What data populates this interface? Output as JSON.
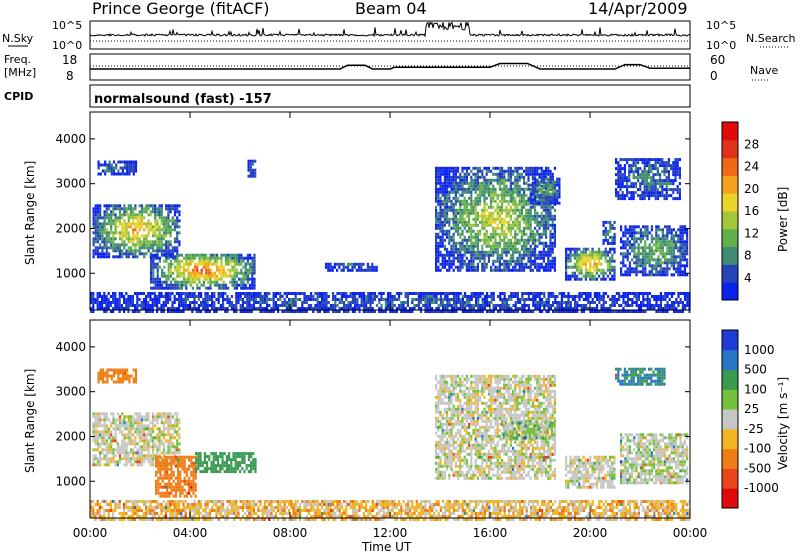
{
  "header": {
    "station": "Prince George (fitACF)",
    "beam": "Beam 04",
    "date": "14/Apr/2009"
  },
  "top_panels": {
    "nsky_label": "N.Sky",
    "nsearch_label": "N.Search",
    "noise_ticks_left": [
      "10^5",
      "10^0"
    ],
    "noise_ticks_right": [
      "10^5",
      "10^0"
    ],
    "freq_label_1": "Freq.",
    "freq_label_2": "[MHz]",
    "freq_ticks": [
      "18",
      "8"
    ],
    "nave_label": "Nave",
    "nave_ticks": [
      "60",
      "0"
    ],
    "cpid_label": "CPID",
    "cpid_text": "normalsound (fast) -157"
  },
  "axes": {
    "ylabel": "Slant Range [km]",
    "xlabel": "Time UT",
    "xticks": [
      "00:00",
      "04:00",
      "08:00",
      "12:00",
      "16:00",
      "20:00",
      "00:00"
    ],
    "yticks": [
      "1000",
      "2000",
      "3000",
      "4000"
    ]
  },
  "colorbars": {
    "power": {
      "label": "Power [dB]",
      "ticks": [
        "4",
        "8",
        "12",
        "16",
        "20",
        "24",
        "28"
      ],
      "colors": [
        "#0a22ee",
        "#2745b8",
        "#3d8a75",
        "#62b04c",
        "#a3c63d",
        "#ead42a",
        "#f4a21e",
        "#ef6a16",
        "#e3311b",
        "#e00a0a"
      ]
    },
    "velocity": {
      "label": "Velocity [m s⁻¹]",
      "ticks": [
        "1000",
        "500",
        "100",
        "25",
        "-25",
        "-100",
        "-500",
        "-1000"
      ],
      "colors": [
        "#1f3bd6",
        "#2a76c6",
        "#3a9a52",
        "#74c23c",
        "#c6c6c6",
        "#f0b520",
        "#ef7d16",
        "#e8461a",
        "#e00a0a"
      ]
    }
  },
  "chart_data": [
    {
      "type": "line",
      "panel": "noise",
      "x_range_hours": [
        0,
        24
      ],
      "series": [
        {
          "name": "N.Sky"
        },
        {
          "name": "N.Search"
        }
      ],
      "note_levels": "sky noise near baseline with spikes 13:30-15:00"
    },
    {
      "type": "line",
      "panel": "frequency_nave",
      "series": [
        {
          "name": "Freq.",
          "x": [
            0,
            1.3,
            1.5,
            5.8,
            6.0,
            10.0,
            10.2,
            12.5,
            13.5,
            14.0,
            18.0,
            20.5,
            21.0,
            22.0,
            22.5,
            24
          ],
          "y": [
            10.5,
            9.8,
            10.5,
            10.5,
            9.8,
            9.8,
            10.5,
            10.5,
            10.5,
            10.5,
            10.5,
            10.5,
            10.5,
            10.5,
            10.5,
            10.5
          ]
        },
        {
          "name": "Nave",
          "x": [
            0,
            10.0,
            10.3,
            11.0,
            11.3,
            12.0,
            12.2,
            16.0,
            16.4,
            17.5,
            18.0,
            21.0,
            21.4,
            22.0,
            22.4,
            24
          ],
          "y": [
            30,
            30,
            40,
            40,
            30,
            30,
            35,
            35,
            45,
            45,
            30,
            30,
            42,
            42,
            32,
            32
          ]
        }
      ]
    },
    {
      "type": "heatmap",
      "panel": "power",
      "x_unit": "hours UT",
      "y_unit": "km",
      "x_range": [
        0,
        24
      ],
      "y_range": [
        180,
        4600
      ],
      "color_ticks_dB": [
        4,
        8,
        12,
        16,
        20,
        24,
        28
      ],
      "echo_regions": [
        {
          "x": [
            0.1,
            3.6
          ],
          "y": [
            1400,
            2600
          ],
          "peak_dB": 22
        },
        {
          "x": [
            0.3,
            1.8
          ],
          "y": [
            3250,
            3550
          ],
          "peak_dB": 10
        },
        {
          "x": [
            2.4,
            6.6
          ],
          "y": [
            700,
            1500
          ],
          "peak_dB": 26
        },
        {
          "x": [
            6.3,
            6.6
          ],
          "y": [
            3200,
            3600
          ],
          "peak_dB": 8
        },
        {
          "x": [
            9.4,
            11.5
          ],
          "y": [
            1100,
            1300
          ],
          "peak_dB": 8
        },
        {
          "x": [
            13.8,
            18.6
          ],
          "y": [
            1100,
            3400
          ],
          "peak_dB": 18
        },
        {
          "x": [
            17.5,
            18.8
          ],
          "y": [
            2600,
            3200
          ],
          "peak_dB": 14
        },
        {
          "x": [
            19.0,
            21.0
          ],
          "y": [
            900,
            1600
          ],
          "peak_dB": 24
        },
        {
          "x": [
            20.5,
            21.0
          ],
          "y": [
            1700,
            2200
          ],
          "peak_dB": 12
        },
        {
          "x": [
            21.2,
            23.9
          ],
          "y": [
            1000,
            2100
          ],
          "peak_dB": 14
        },
        {
          "x": [
            21.0,
            23.6
          ],
          "y": [
            2700,
            3600
          ],
          "peak_dB": 10
        },
        {
          "x": [
            0.0,
            24.0
          ],
          "y": [
            180,
            600
          ],
          "peak_dB": 8
        }
      ]
    },
    {
      "type": "heatmap",
      "panel": "velocity",
      "x_unit": "hours UT",
      "y_unit": "km",
      "x_range": [
        0,
        24
      ],
      "y_range": [
        180,
        4600
      ],
      "color_ticks_ms": [
        1000,
        500,
        100,
        25,
        -25,
        -100,
        -500,
        -1000
      ],
      "echo_regions": [
        {
          "x": [
            0.1,
            3.6
          ],
          "y": [
            1400,
            2600
          ],
          "velocity": 0
        },
        {
          "x": [
            0.3,
            1.8
          ],
          "y": [
            3250,
            3550
          ],
          "velocity": -200
        },
        {
          "x": [
            2.6,
            4.2
          ],
          "y": [
            700,
            1600
          ],
          "velocity": -200
        },
        {
          "x": [
            4.2,
            6.6
          ],
          "y": [
            1250,
            1700
          ],
          "velocity": 150
        },
        {
          "x": [
            13.8,
            18.6
          ],
          "y": [
            1100,
            3400
          ],
          "velocity": 0
        },
        {
          "x": [
            16.5,
            18.6
          ],
          "y": [
            2000,
            2400
          ],
          "velocity": 30
        },
        {
          "x": [
            19.0,
            21.0
          ],
          "y": [
            900,
            1600
          ],
          "velocity": 0
        },
        {
          "x": [
            21.2,
            23.9
          ],
          "y": [
            1000,
            2100
          ],
          "velocity": 10
        },
        {
          "x": [
            21.0,
            23.0
          ],
          "y": [
            3200,
            3600
          ],
          "velocity": 300
        },
        {
          "x": [
            0.0,
            24.0
          ],
          "y": [
            180,
            600
          ],
          "velocity": -40
        }
      ]
    }
  ]
}
